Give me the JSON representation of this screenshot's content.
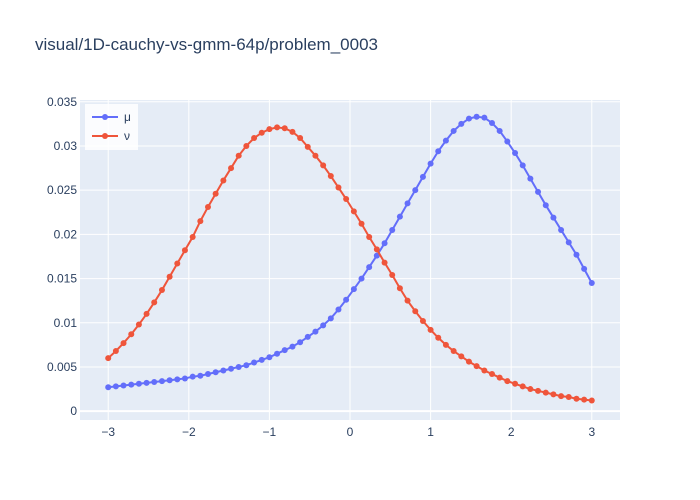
{
  "chart_data": {
    "type": "line",
    "title": "visual/1D-cauchy-vs-gmm-64p/problem_0003",
    "xlabel": "",
    "ylabel": "",
    "xlim": [
      -3.35,
      3.35
    ],
    "ylim": [
      -0.001,
      0.0352
    ],
    "x_ticks": [
      -3,
      -2,
      -1,
      0,
      1,
      2,
      3
    ],
    "x_tick_labels": [
      "−3",
      "−2",
      "−1",
      "0",
      "1",
      "2",
      "3"
    ],
    "y_ticks": [
      0,
      0.005,
      0.01,
      0.015,
      0.02,
      0.025,
      0.03,
      0.035
    ],
    "y_tick_labels": [
      "0",
      "0.005",
      "0.01",
      "0.015",
      "0.02",
      "0.025",
      "0.03",
      "0.035"
    ],
    "grid": true,
    "legend_position": "top-left",
    "x": [
      -3.0,
      -2.905,
      -2.81,
      -2.714,
      -2.619,
      -2.524,
      -2.429,
      -2.333,
      -2.238,
      -2.143,
      -2.048,
      -1.952,
      -1.857,
      -1.762,
      -1.667,
      -1.571,
      -1.476,
      -1.381,
      -1.286,
      -1.19,
      -1.095,
      -1.0,
      -0.905,
      -0.81,
      -0.714,
      -0.619,
      -0.524,
      -0.429,
      -0.333,
      -0.238,
      -0.143,
      -0.048,
      0.048,
      0.143,
      0.238,
      0.333,
      0.429,
      0.524,
      0.619,
      0.714,
      0.81,
      0.905,
      1.0,
      1.095,
      1.19,
      1.286,
      1.381,
      1.476,
      1.571,
      1.667,
      1.762,
      1.857,
      1.952,
      2.048,
      2.143,
      2.238,
      2.333,
      2.429,
      2.524,
      2.619,
      2.714,
      2.81,
      2.905,
      3.0
    ],
    "series": [
      {
        "name": "μ",
        "color": "#636efa",
        "values": [
          0.0027,
          0.0028,
          0.0029,
          0.003,
          0.0031,
          0.0032,
          0.0033,
          0.0034,
          0.0035,
          0.0036,
          0.0037,
          0.0039,
          0.004,
          0.0042,
          0.0044,
          0.0046,
          0.0048,
          0.005,
          0.0052,
          0.0055,
          0.0058,
          0.0061,
          0.0065,
          0.0069,
          0.0073,
          0.0078,
          0.0084,
          0.009,
          0.0097,
          0.0105,
          0.0115,
          0.0126,
          0.0138,
          0.015,
          0.0163,
          0.0176,
          0.019,
          0.0205,
          0.022,
          0.0235,
          0.025,
          0.0265,
          0.028,
          0.0294,
          0.0306,
          0.0317,
          0.0325,
          0.0331,
          0.0333,
          0.0332,
          0.0326,
          0.0317,
          0.0305,
          0.0292,
          0.0278,
          0.0263,
          0.0248,
          0.0233,
          0.0219,
          0.0205,
          0.0191,
          0.0177,
          0.0161,
          0.0145
        ]
      },
      {
        "name": "ν",
        "color": "#ef553b",
        "values": [
          0.006,
          0.0068,
          0.0077,
          0.0087,
          0.0098,
          0.011,
          0.0123,
          0.0137,
          0.0152,
          0.0167,
          0.0182,
          0.0197,
          0.0215,
          0.0231,
          0.0246,
          0.0261,
          0.0275,
          0.0289,
          0.03,
          0.0309,
          0.0315,
          0.0319,
          0.0321,
          0.032,
          0.0316,
          0.0309,
          0.0299,
          0.0289,
          0.0278,
          0.0266,
          0.0253,
          0.024,
          0.0226,
          0.0212,
          0.0197,
          0.0183,
          0.0168,
          0.0154,
          0.0139,
          0.0125,
          0.0113,
          0.0102,
          0.0092,
          0.0083,
          0.0075,
          0.0068,
          0.0062,
          0.0056,
          0.0051,
          0.0046,
          0.0042,
          0.0038,
          0.0034,
          0.0031,
          0.0028,
          0.0025,
          0.0023,
          0.0021,
          0.0019,
          0.0017,
          0.0016,
          0.0014,
          0.0013,
          0.0012
        ]
      }
    ]
  }
}
